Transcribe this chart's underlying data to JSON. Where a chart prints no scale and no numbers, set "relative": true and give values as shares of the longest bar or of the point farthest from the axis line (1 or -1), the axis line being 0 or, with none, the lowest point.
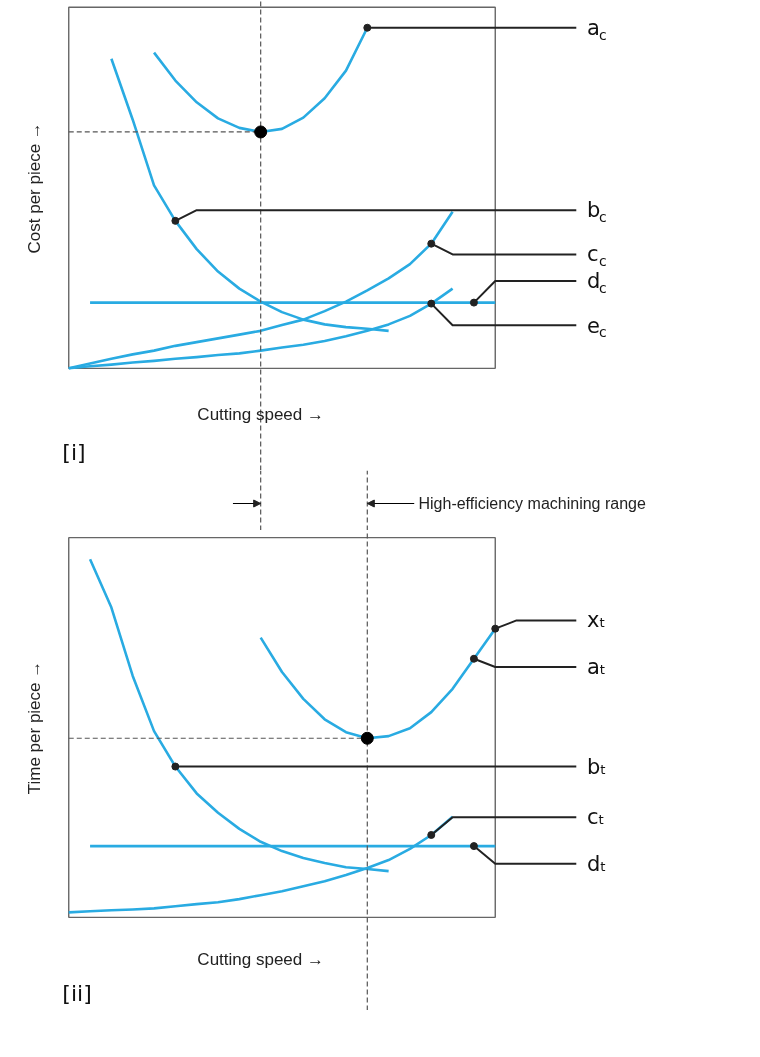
{
  "chart_data": [
    {
      "type": "line",
      "relative": true,
      "ylabel": "Cost per piece →",
      "xlabel": "Cutting speed →",
      "categories": [
        null,
        null,
        null,
        null,
        null,
        null,
        null,
        null,
        null,
        null,
        null,
        null,
        null,
        null,
        null,
        null,
        null,
        null,
        null,
        null,
        null
      ],
      "series": [
        {
          "name": "a$_{c}$",
          "color": "#29abe2",
          "values": [
            null,
            null,
            null,
            null,
            0.927,
            0.845,
            0.781,
            0.734,
            0.706,
            0.694,
            0.703,
            0.736,
            0.793,
            0.874,
            1.0,
            null,
            null,
            null,
            null,
            null,
            null
          ]
        },
        {
          "name": "b$_{c}$",
          "color": "#29abe2",
          "values": [
            null,
            null,
            0.909,
            0.73,
            0.537,
            0.433,
            0.35,
            0.284,
            0.234,
            0.196,
            0.165,
            0.143,
            0.129,
            0.121,
            0.116,
            0.11,
            null,
            null,
            null,
            null,
            null
          ]
        },
        {
          "name": "c$_{c}$",
          "color": "#29abe2",
          "values": [
            0,
            0.014,
            0.028,
            0.041,
            0.052,
            0.066,
            0.077,
            0.088,
            0.099,
            0.11,
            0.127,
            0.143,
            0.168,
            0.196,
            0.229,
            0.264,
            0.306,
            0.366,
            0.46,
            null,
            null
          ]
        },
        {
          "name": "d$_{c}$",
          "color": "#29abe2",
          "values": [
            null,
            0.193,
            0.193,
            0.193,
            0.193,
            0.193,
            0.193,
            0.193,
            0.193,
            0.193,
            0.193,
            0.193,
            0.193,
            0.193,
            0.193,
            0.193,
            0.193,
            0.193,
            0.193,
            0.193,
            0.193
          ]
        },
        {
          "name": "e$_{c}$",
          "color": "#29abe2",
          "values": [
            0,
            0.006,
            0.011,
            0.017,
            0.022,
            0.028,
            0.033,
            0.039,
            0.044,
            0.052,
            0.061,
            0.069,
            0.08,
            0.094,
            0.11,
            0.129,
            0.154,
            0.19,
            0.234,
            null,
            null
          ]
        }
      ],
      "ref_lines": [
        {
          "axis": "y",
          "value": 0.694,
          "line_style": "dashed",
          "color": "#555555"
        }
      ],
      "annotations": [
        "[i]"
      ],
      "legend": "right"
    },
    {
      "type": "line",
      "relative": true,
      "ylabel": "Time per piece →",
      "xlabel": "Cutting speed →",
      "categories": [
        null,
        null,
        null,
        null,
        null,
        null,
        null,
        null,
        null,
        null,
        null,
        null,
        null,
        null,
        null,
        null,
        null,
        null,
        null,
        null,
        null
      ],
      "series": [
        {
          "name": "aₜ",
          "color": "#29abe2",
          "values": [
            null,
            null,
            null,
            null,
            null,
            null,
            null,
            null,
            null,
            0.781,
            0.685,
            0.61,
            0.553,
            0.517,
            0.5,
            0.506,
            0.528,
            0.573,
            0.638,
            0.722,
            0.806
          ]
        },
        {
          "name": "bₜ",
          "color": "#29abe2",
          "values": [
            null,
            1.0,
            0.865,
            0.674,
            0.52,
            0.421,
            0.346,
            0.292,
            0.247,
            0.211,
            0.185,
            0.166,
            0.152,
            0.14,
            0.135,
            0.129,
            null,
            null,
            null,
            null,
            null
          ]
        },
        {
          "name": "cₜ",
          "color": "#29abe2",
          "values": [
            0.014,
            0.017,
            0.02,
            0.022,
            0.025,
            0.031,
            0.037,
            0.042,
            0.051,
            0.062,
            0.073,
            0.087,
            0.101,
            0.118,
            0.138,
            0.16,
            0.191,
            0.23,
            0.281,
            null,
            null
          ]
        },
        {
          "name": "dₜ",
          "color": "#29abe2",
          "values": [
            null,
            0.199,
            0.199,
            0.199,
            0.199,
            0.199,
            0.199,
            0.199,
            0.199,
            0.199,
            0.199,
            0.199,
            0.199,
            0.199,
            0.199,
            0.199,
            0.199,
            0.199,
            0.199,
            0.199,
            0.199
          ]
        }
      ],
      "ref_lines": [
        {
          "axis": "y",
          "value": 0.5,
          "line_style": "dashed",
          "color": "#555555"
        }
      ],
      "annotations": [
        "High-efficiency machining range",
        "xₜ",
        "[ii]"
      ],
      "legend": "right"
    }
  ]
}
